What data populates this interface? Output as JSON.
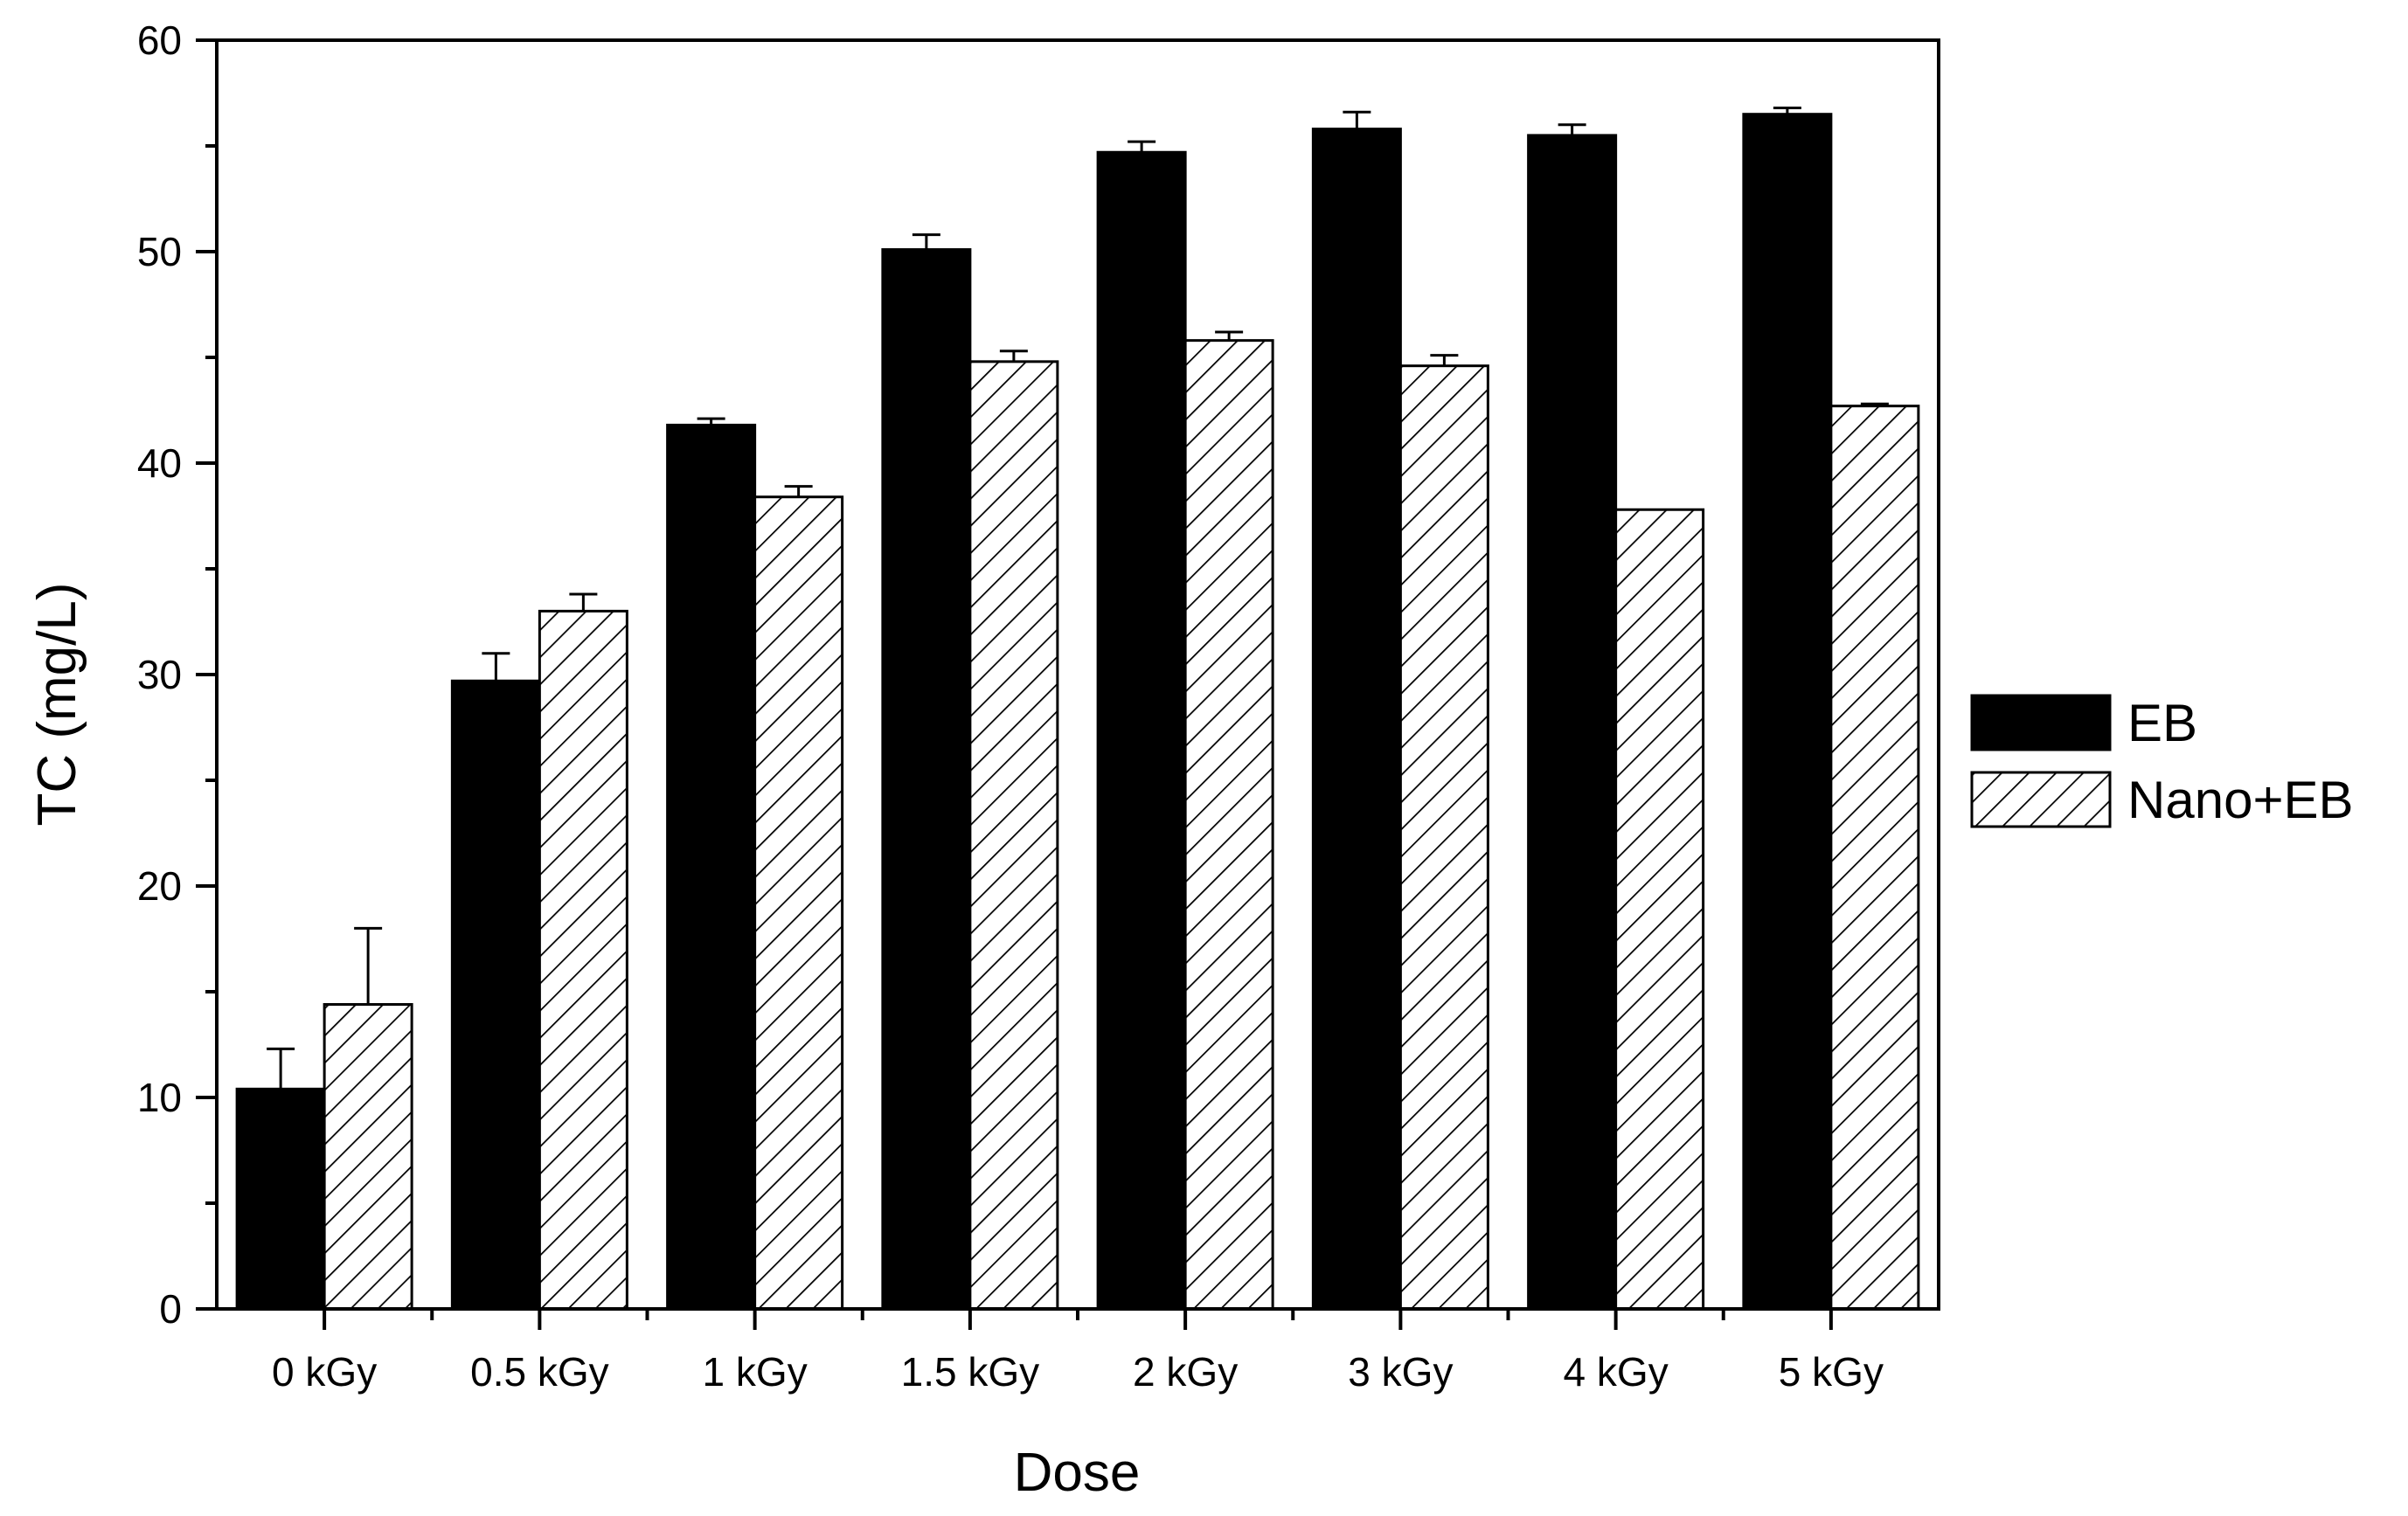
{
  "chart_data": {
    "type": "bar",
    "xlabel": "Dose",
    "ylabel": "TC (mg/L)",
    "categories": [
      "0 kGy",
      "0.5 kGy",
      "1 kGy",
      "1.5 kGy",
      "2 kGy",
      "3 kGy",
      "4 kGy",
      "5 kGy"
    ],
    "ylim": [
      0,
      60
    ],
    "yticks": [
      "0",
      "10",
      "20",
      "30",
      "40",
      "50",
      "60"
    ],
    "legend_position": "right",
    "grid": false,
    "series": [
      {
        "name": "EB",
        "fill": "solid",
        "color": "#000000",
        "values": [
          10.4,
          29.7,
          41.8,
          50.1,
          54.7,
          55.8,
          55.5,
          56.5
        ],
        "errors": [
          1.9,
          1.3,
          0.3,
          0.7,
          0.5,
          0.8,
          0.5,
          0.3
        ]
      },
      {
        "name": "Nano+EB",
        "fill": "hatched",
        "color": "#000000",
        "values": [
          14.4,
          33.0,
          38.4,
          44.8,
          45.8,
          44.6,
          37.8,
          42.7
        ],
        "errors": [
          3.6,
          0.8,
          0.5,
          0.5,
          0.4,
          0.5,
          0.0,
          0.1
        ]
      }
    ]
  }
}
